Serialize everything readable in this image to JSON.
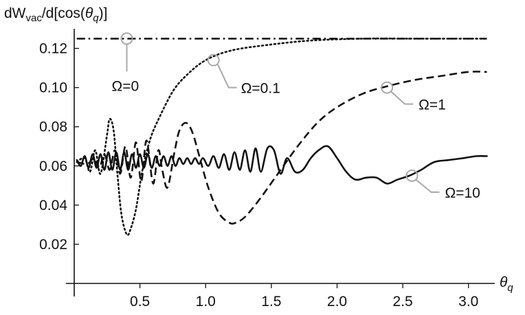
{
  "chart_data": {
    "type": "line",
    "ylabel": {
      "prefix": "dW",
      "sub": "vac",
      "mid": "/d[cos(",
      "theta": "θ",
      "theta_sub": "q",
      "suffix": ")]"
    },
    "xlabel": {
      "theta": "θ",
      "theta_sub": "q"
    },
    "xlim": [
      0,
      3.2
    ],
    "ylim": [
      0,
      0.13
    ],
    "xticks": [
      {
        "value": 0.5,
        "label": "0.5"
      },
      {
        "value": 1.0,
        "label": "1.0"
      },
      {
        "value": 1.5,
        "label": "1.5"
      },
      {
        "value": 2.0,
        "label": "2.0"
      },
      {
        "value": 2.5,
        "label": "2.5"
      },
      {
        "value": 3.0,
        "label": "3.0"
      }
    ],
    "yticks": [
      {
        "value": 0.02,
        "label": "0.02"
      },
      {
        "value": 0.04,
        "label": "0.04"
      },
      {
        "value": 0.06,
        "label": "0.06"
      },
      {
        "value": 0.08,
        "label": "0.08"
      },
      {
        "value": 0.1,
        "label": "0.10"
      },
      {
        "value": 0.12,
        "label": "0.12"
      }
    ],
    "grid": false,
    "annotation_color": "#a8a8a8",
    "series": [
      {
        "name": "Ω=0",
        "style": "dashdot",
        "x": [
          0.02,
          0.5,
          1.0,
          1.5,
          2.0,
          2.5,
          3.14
        ],
        "y": [
          0.125,
          0.125,
          0.125,
          0.125,
          0.125,
          0.125,
          0.125
        ],
        "annotation": {
          "at": [
            0.4,
            0.125
          ],
          "label": "Ω=0"
        }
      },
      {
        "name": "Ω=0.1",
        "style": "dotted",
        "x": [
          0.02,
          0.08,
          0.12,
          0.16,
          0.2,
          0.25,
          0.27,
          0.3,
          0.33,
          0.36,
          0.4,
          0.43,
          0.47,
          0.52,
          0.58,
          0.65,
          0.75,
          0.85,
          1.0,
          1.2,
          1.5,
          1.8,
          2.2,
          2.6,
          3.0,
          3.14
        ],
        "y": [
          0.062,
          0.064,
          0.057,
          0.068,
          0.056,
          0.076,
          0.084,
          0.078,
          0.055,
          0.035,
          0.025,
          0.028,
          0.038,
          0.058,
          0.074,
          0.085,
          0.098,
          0.106,
          0.114,
          0.119,
          0.122,
          0.124,
          0.125,
          0.125,
          0.125,
          0.125
        ],
        "annotation": {
          "at": [
            1.06,
            0.114
          ],
          "label": "Ω=0.1"
        }
      },
      {
        "name": "Ω=1",
        "style": "dashed",
        "x": [
          0.02,
          0.1,
          0.15,
          0.19,
          0.23,
          0.27,
          0.31,
          0.35,
          0.39,
          0.43,
          0.47,
          0.51,
          0.55,
          0.6,
          0.64,
          0.67,
          0.71,
          0.76,
          0.8,
          0.85,
          0.9,
          0.96,
          1.02,
          1.1,
          1.18,
          1.23,
          1.3,
          1.4,
          1.55,
          1.7,
          1.85,
          2.0,
          2.2,
          2.4,
          2.6,
          2.8,
          3.0,
          3.14
        ],
        "y": [
          0.062,
          0.061,
          0.064,
          0.059,
          0.066,
          0.058,
          0.068,
          0.056,
          0.07,
          0.054,
          0.072,
          0.052,
          0.073,
          0.051,
          0.068,
          0.058,
          0.049,
          0.066,
          0.078,
          0.082,
          0.077,
          0.063,
          0.049,
          0.036,
          0.031,
          0.031,
          0.034,
          0.042,
          0.056,
          0.07,
          0.082,
          0.09,
          0.097,
          0.101,
          0.104,
          0.106,
          0.108,
          0.108
        ],
        "annotation": {
          "at": [
            2.38,
            0.1
          ],
          "label": "Ω=1"
        }
      },
      {
        "name": "Ω=10",
        "style": "solid",
        "x": [
          0.02,
          0.05,
          0.08,
          0.11,
          0.14,
          0.17,
          0.2,
          0.23,
          0.26,
          0.29,
          0.32,
          0.35,
          0.38,
          0.41,
          0.44,
          0.47,
          0.5,
          0.53,
          0.56,
          0.59,
          0.62,
          0.65,
          0.68,
          0.71,
          0.74,
          0.77,
          0.8,
          0.83,
          0.86,
          0.89,
          0.92,
          0.95,
          0.98,
          1.02,
          1.06,
          1.1,
          1.14,
          1.18,
          1.22,
          1.26,
          1.3,
          1.34,
          1.38,
          1.42,
          1.47,
          1.52,
          1.57,
          1.62,
          1.68,
          1.74,
          1.8,
          1.86,
          1.93,
          2.0,
          2.07,
          2.14,
          2.22,
          2.3,
          2.38,
          2.46,
          2.55,
          2.64,
          2.74,
          2.85,
          2.96,
          3.06,
          3.14
        ],
        "y": [
          0.063,
          0.06,
          0.065,
          0.059,
          0.066,
          0.059,
          0.066,
          0.058,
          0.067,
          0.058,
          0.067,
          0.058,
          0.067,
          0.058,
          0.066,
          0.059,
          0.066,
          0.059,
          0.066,
          0.059,
          0.065,
          0.06,
          0.065,
          0.06,
          0.065,
          0.06,
          0.064,
          0.061,
          0.064,
          0.061,
          0.064,
          0.061,
          0.064,
          0.06,
          0.065,
          0.059,
          0.066,
          0.058,
          0.067,
          0.058,
          0.068,
          0.057,
          0.069,
          0.057,
          0.069,
          0.068,
          0.056,
          0.064,
          0.057,
          0.058,
          0.064,
          0.068,
          0.07,
          0.064,
          0.057,
          0.053,
          0.054,
          0.054,
          0.051,
          0.053,
          0.055,
          0.058,
          0.062,
          0.063,
          0.064,
          0.065,
          0.065
        ],
        "annotation": {
          "at": [
            2.57,
            0.055
          ],
          "label": "Ω=10"
        }
      }
    ]
  }
}
